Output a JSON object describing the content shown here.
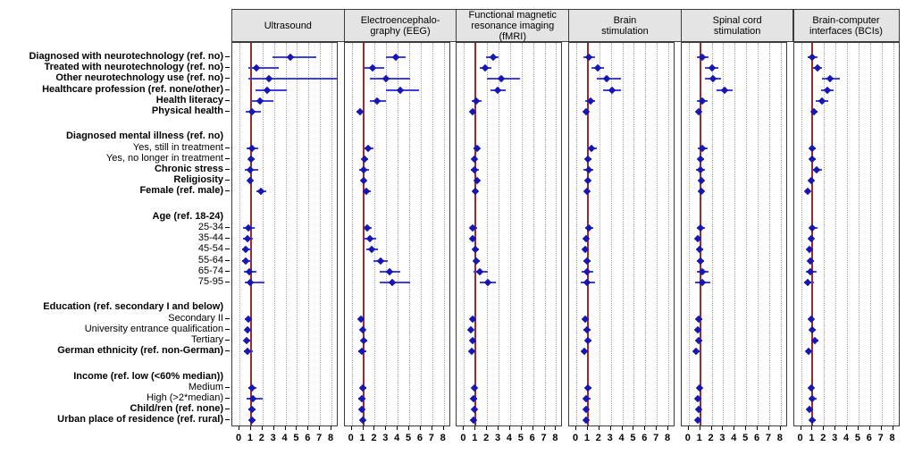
{
  "chart_data": {
    "type": "scatter",
    "subtype": "forest-plot-odds-ratios",
    "x_ticks": [
      "0",
      "1",
      "2",
      "3",
      "4",
      "5",
      "6",
      "7",
      "8"
    ],
    "x_range": [
      0,
      8.6
    ],
    "reference_line_x": 1,
    "grid": "dotted-vertical-at-integers",
    "legend_position": "none",
    "rows": [
      {
        "id": "diag_neurotech",
        "label": "Diagnosed with neurotechnology (ref. no)",
        "bold": true,
        "group_header": false,
        "gap_before": false
      },
      {
        "id": "treated_neurotech",
        "label": "Treated with neurotechnology (ref. no)",
        "bold": true,
        "group_header": false,
        "gap_before": false
      },
      {
        "id": "other_neurotech",
        "label": "Other neurotechnology use (ref. no)",
        "bold": true,
        "group_header": false,
        "gap_before": false
      },
      {
        "id": "healthcare",
        "label": "Healthcare profession (ref. none/other)",
        "bold": true,
        "group_header": false,
        "gap_before": false
      },
      {
        "id": "health_literacy",
        "label": "Health literacy",
        "bold": true,
        "group_header": false,
        "gap_before": false
      },
      {
        "id": "physical_health",
        "label": "Physical health",
        "bold": true,
        "group_header": false,
        "gap_before": false
      },
      {
        "id": "mental_illness_hdr",
        "label": "Diagnosed mental illness (ref. no)",
        "bold": true,
        "group_header": true,
        "gap_before": true
      },
      {
        "id": "yes_treatment",
        "label": "Yes, still in treatment",
        "bold": false,
        "group_header": false,
        "gap_before": false
      },
      {
        "id": "yes_no_treatment",
        "label": "Yes, no longer in treatment",
        "bold": false,
        "group_header": false,
        "gap_before": false
      },
      {
        "id": "chronic_stress",
        "label": "Chronic stress",
        "bold": true,
        "group_header": false,
        "gap_before": false
      },
      {
        "id": "religiosity",
        "label": "Religiosity",
        "bold": true,
        "group_header": false,
        "gap_before": false
      },
      {
        "id": "female",
        "label": "Female (ref. male)",
        "bold": true,
        "group_header": false,
        "gap_before": false
      },
      {
        "id": "age_hdr",
        "label": "Age (ref. 18-24)",
        "bold": true,
        "group_header": true,
        "gap_before": true
      },
      {
        "id": "age_25_34",
        "label": "25-34",
        "bold": false,
        "group_header": false,
        "gap_before": false
      },
      {
        "id": "age_35_44",
        "label": "35-44",
        "bold": false,
        "group_header": false,
        "gap_before": false
      },
      {
        "id": "age_45_54",
        "label": "45-54",
        "bold": false,
        "group_header": false,
        "gap_before": false
      },
      {
        "id": "age_55_64",
        "label": "55-64",
        "bold": false,
        "group_header": false,
        "gap_before": false
      },
      {
        "id": "age_65_74",
        "label": "65-74",
        "bold": false,
        "group_header": false,
        "gap_before": false
      },
      {
        "id": "age_75_95",
        "label": "75-95",
        "bold": false,
        "group_header": false,
        "gap_before": false
      },
      {
        "id": "education_hdr",
        "label": "Education (ref. secondary I and below)",
        "bold": true,
        "group_header": true,
        "gap_before": true
      },
      {
        "id": "secondary2",
        "label": "Secondary II",
        "bold": false,
        "group_header": false,
        "gap_before": false
      },
      {
        "id": "university",
        "label": "University entrance qualification",
        "bold": false,
        "group_header": false,
        "gap_before": false
      },
      {
        "id": "tertiary",
        "label": "Tertiary",
        "bold": false,
        "group_header": false,
        "gap_before": false
      },
      {
        "id": "german",
        "label": "German ethnicity (ref. non-German)",
        "bold": true,
        "group_header": false,
        "gap_before": false
      },
      {
        "id": "income_hdr",
        "label": "Income (ref. low (<60% median))",
        "bold": true,
        "group_header": true,
        "gap_before": true
      },
      {
        "id": "medium",
        "label": "Medium",
        "bold": false,
        "group_header": false,
        "gap_before": false
      },
      {
        "id": "high",
        "label": "High (>2*median)",
        "bold": false,
        "group_header": false,
        "gap_before": false
      },
      {
        "id": "children",
        "label": "Child/ren (ref. none)",
        "bold": true,
        "group_header": false,
        "gap_before": false
      },
      {
        "id": "urban",
        "label": "Urban place of residence (ref. rural)",
        "bold": true,
        "group_header": false,
        "gap_before": false
      }
    ],
    "panels": [
      {
        "title": "Ultrasound",
        "estimates": {
          "diag_neurotech": [
            4.4,
            2.9,
            6.7
          ],
          "treated_neurotech": [
            1.5,
            0.75,
            3.4
          ],
          "other_neurotech": [
            2.6,
            0.8,
            8.6
          ],
          "healthcare": [
            2.4,
            1.4,
            4.1
          ],
          "health_literacy": [
            1.75,
            1.05,
            2.95
          ],
          "physical_health": [
            1.05,
            0.55,
            1.9
          ],
          "yes_treatment": [
            1.1,
            0.65,
            1.6
          ],
          "yes_no_treatment": [
            1.0,
            0.75,
            1.35
          ],
          "chronic_stress": [
            0.9,
            0.45,
            1.6
          ],
          "religiosity": [
            0.9,
            0.7,
            1.15
          ],
          "female": [
            1.9,
            1.5,
            2.3
          ],
          "age_25_34": [
            0.76,
            0.3,
            1.3
          ],
          "age_35_44": [
            0.7,
            0.3,
            1.2
          ],
          "age_45_54": [
            0.55,
            0.25,
            1.0
          ],
          "age_55_64": [
            0.55,
            0.25,
            1.0
          ],
          "age_65_74": [
            0.83,
            0.35,
            1.5
          ],
          "age_75_95": [
            0.95,
            0.45,
            2.15
          ],
          "secondary2": [
            0.75,
            0.5,
            1.1
          ],
          "university": [
            0.7,
            0.45,
            1.05
          ],
          "tertiary": [
            0.62,
            0.4,
            0.95
          ],
          "german": [
            0.73,
            0.4,
            1.2
          ],
          "medium": [
            1.1,
            0.8,
            1.5
          ],
          "high": [
            1.2,
            0.6,
            2.05
          ],
          "children": [
            1.06,
            0.8,
            1.4
          ],
          "urban": [
            1.09,
            0.85,
            1.4
          ]
        }
      },
      {
        "title": "Electroencephalo-\ngraphy (EEG)",
        "estimates": {
          "diag_neurotech": [
            3.85,
            3.0,
            4.65
          ],
          "treated_neurotech": [
            1.8,
            1.1,
            2.8
          ],
          "other_neurotech": [
            2.95,
            1.6,
            5.1
          ],
          "healthcare": [
            4.25,
            3.0,
            5.85
          ],
          "health_literacy": [
            2.2,
            1.6,
            2.95
          ],
          "physical_health": [
            0.76,
            0.45,
            1.1
          ],
          "yes_treatment": [
            1.45,
            1.05,
            1.85
          ],
          "yes_no_treatment": [
            1.1,
            0.9,
            1.4
          ],
          "chronic_stress": [
            1.05,
            0.65,
            1.5
          ],
          "religiosity": [
            1.05,
            0.9,
            1.25
          ],
          "female": [
            1.3,
            0.95,
            1.65
          ],
          "age_25_34": [
            1.35,
            1.0,
            1.7
          ],
          "age_35_44": [
            1.6,
            1.15,
            2.15
          ],
          "age_45_54": [
            1.75,
            1.25,
            2.3
          ],
          "age_55_64": [
            2.5,
            1.85,
            3.15
          ],
          "age_65_74": [
            3.25,
            2.45,
            4.25
          ],
          "age_75_95": [
            3.55,
            2.45,
            5.1
          ],
          "secondary2": [
            0.8,
            0.6,
            1.05
          ],
          "university": [
            0.95,
            0.7,
            1.2
          ],
          "tertiary": [
            1.05,
            0.8,
            1.35
          ],
          "german": [
            0.9,
            0.6,
            1.3
          ],
          "medium": [
            0.95,
            0.75,
            1.25
          ],
          "high": [
            0.85,
            0.6,
            1.2
          ],
          "children": [
            0.85,
            0.65,
            1.05
          ],
          "urban": [
            0.95,
            0.8,
            1.2
          ]
        }
      },
      {
        "title": "Functional magnetic\nresonance imaging\n(fMRI)",
        "estimates": {
          "diag_neurotech": [
            2.5,
            1.95,
            3.0
          ],
          "treated_neurotech": [
            1.85,
            1.35,
            2.4
          ],
          "other_neurotech": [
            3.2,
            2.0,
            4.85
          ],
          "healthcare": [
            2.95,
            2.3,
            3.6
          ],
          "health_literacy": [
            1.05,
            0.65,
            1.5
          ],
          "physical_health": [
            0.76,
            0.55,
            1.0
          ],
          "yes_treatment": [
            1.1,
            0.85,
            1.4
          ],
          "yes_no_treatment": [
            0.9,
            0.7,
            1.15
          ],
          "chronic_stress": [
            0.9,
            0.6,
            1.3
          ],
          "religiosity": [
            1.1,
            0.95,
            1.3
          ],
          "female": [
            1.0,
            0.8,
            1.25
          ],
          "age_25_34": [
            0.78,
            0.55,
            1.1
          ],
          "age_35_44": [
            0.76,
            0.55,
            1.05
          ],
          "age_45_54": [
            1.0,
            0.75,
            1.3
          ],
          "age_55_64": [
            1.07,
            0.8,
            1.4
          ],
          "age_65_74": [
            1.4,
            0.85,
            2.05
          ],
          "age_75_95": [
            2.1,
            1.4,
            2.8
          ],
          "secondary2": [
            0.73,
            0.55,
            1.0
          ],
          "university": [
            0.6,
            0.45,
            0.85
          ],
          "tertiary": [
            0.73,
            0.55,
            1.0
          ],
          "german": [
            0.65,
            0.45,
            0.95
          ],
          "medium": [
            0.9,
            0.7,
            1.15
          ],
          "high": [
            0.82,
            0.6,
            1.1
          ],
          "children": [
            0.9,
            0.7,
            1.1
          ],
          "urban": [
            0.85,
            0.7,
            1.05
          ]
        }
      },
      {
        "title": "Brain\nstimulation",
        "estimates": {
          "diag_neurotech": [
            1.1,
            0.65,
            1.6
          ],
          "treated_neurotech": [
            1.85,
            1.3,
            2.4
          ],
          "other_neurotech": [
            2.6,
            1.8,
            3.9
          ],
          "healthcare": [
            3.1,
            2.35,
            3.85
          ],
          "health_literacy": [
            1.2,
            0.8,
            1.65
          ],
          "physical_health": [
            0.84,
            0.6,
            1.1
          ],
          "yes_treatment": [
            1.3,
            0.9,
            1.75
          ],
          "yes_no_treatment": [
            1.0,
            0.8,
            1.3
          ],
          "chronic_stress": [
            1.1,
            0.65,
            1.5
          ],
          "religiosity": [
            1.0,
            0.85,
            1.2
          ],
          "female": [
            0.94,
            0.75,
            1.15
          ],
          "age_25_34": [
            1.07,
            0.75,
            1.5
          ],
          "age_35_44": [
            0.81,
            0.6,
            1.1
          ],
          "age_45_54": [
            0.76,
            0.55,
            1.05
          ],
          "age_55_64": [
            0.89,
            0.65,
            1.2
          ],
          "age_65_74": [
            0.94,
            0.47,
            1.45
          ],
          "age_75_95": [
            0.94,
            0.35,
            1.6
          ],
          "secondary2": [
            0.76,
            0.55,
            1.0
          ],
          "university": [
            0.89,
            0.65,
            1.2
          ],
          "tertiary": [
            1.0,
            0.75,
            1.35
          ],
          "german": [
            0.68,
            0.45,
            1.0
          ],
          "medium": [
            1.0,
            0.8,
            1.3
          ],
          "high": [
            0.86,
            0.6,
            1.2
          ],
          "children": [
            0.81,
            0.65,
            1.0
          ],
          "urban": [
            0.86,
            0.7,
            1.05
          ]
        }
      },
      {
        "title": "Spinal cord\nstimulation",
        "estimates": {
          "diag_neurotech": [
            1.2,
            0.75,
            1.7
          ],
          "treated_neurotech": [
            2.0,
            1.4,
            2.6
          ],
          "other_neurotech": [
            2.1,
            1.45,
            2.85
          ],
          "healthcare": [
            3.1,
            2.45,
            3.85
          ],
          "health_literacy": [
            1.2,
            0.75,
            1.65
          ],
          "physical_health": [
            0.87,
            0.65,
            1.1
          ],
          "yes_treatment": [
            1.2,
            0.8,
            1.65
          ],
          "yes_no_treatment": [
            1.0,
            0.78,
            1.3
          ],
          "chronic_stress": [
            1.0,
            0.6,
            1.45
          ],
          "religiosity": [
            1.08,
            0.9,
            1.3
          ],
          "female": [
            1.08,
            0.85,
            1.35
          ],
          "age_25_34": [
            1.03,
            0.7,
            1.45
          ],
          "age_35_44": [
            0.81,
            0.6,
            1.1
          ],
          "age_45_54": [
            0.94,
            0.7,
            1.25
          ],
          "age_55_64": [
            1.0,
            0.72,
            1.35
          ],
          "age_65_74": [
            1.2,
            0.7,
            1.75
          ],
          "age_75_95": [
            1.2,
            0.55,
            1.85
          ],
          "secondary2": [
            0.9,
            0.65,
            1.2
          ],
          "university": [
            0.81,
            0.6,
            1.1
          ],
          "tertiary": [
            0.9,
            0.65,
            1.2
          ],
          "german": [
            0.63,
            0.4,
            0.95
          ],
          "medium": [
            0.94,
            0.72,
            1.2
          ],
          "high": [
            0.81,
            0.58,
            1.1
          ],
          "children": [
            0.87,
            0.7,
            1.1
          ],
          "urban": [
            0.81,
            0.66,
            1.0
          ]
        }
      },
      {
        "title": "Brain-computer\ninterfaces (BCIs)",
        "estimates": {
          "diag_neurotech": [
            1.0,
            0.6,
            1.4
          ],
          "treated_neurotech": [
            1.4,
            1.0,
            1.85
          ],
          "other_neurotech": [
            2.5,
            1.8,
            3.4
          ],
          "healthcare": [
            2.3,
            1.75,
            2.85
          ],
          "health_literacy": [
            1.85,
            1.3,
            2.4
          ],
          "physical_health": [
            1.13,
            0.9,
            1.4
          ],
          "yes_treatment": [
            1.0,
            0.78,
            1.3
          ],
          "yes_no_treatment": [
            1.0,
            0.8,
            1.25
          ],
          "chronic_stress": [
            1.35,
            0.9,
            1.85
          ],
          "religiosity": [
            0.9,
            0.75,
            1.05
          ],
          "female": [
            0.6,
            0.45,
            0.82
          ],
          "age_25_34": [
            1.0,
            0.7,
            1.4
          ],
          "age_35_44": [
            0.87,
            0.65,
            1.15
          ],
          "age_45_54": [
            0.76,
            0.55,
            1.0
          ],
          "age_55_64": [
            0.84,
            0.6,
            1.15
          ],
          "age_65_74": [
            0.84,
            0.45,
            1.35
          ],
          "age_75_95": [
            0.6,
            0.3,
            1.1
          ],
          "secondary2": [
            0.87,
            0.65,
            1.15
          ],
          "university": [
            0.95,
            0.7,
            1.25
          ],
          "tertiary": [
            1.2,
            0.9,
            1.55
          ],
          "german": [
            0.69,
            0.45,
            1.0
          ],
          "medium": [
            0.87,
            0.65,
            1.15
          ],
          "high": [
            1.0,
            0.72,
            1.35
          ],
          "children": [
            0.74,
            0.55,
            0.95
          ],
          "urban": [
            1.0,
            0.8,
            1.25
          ]
        }
      }
    ]
  },
  "colors": {
    "marker": "#1616b4",
    "ci_line": "#3d3de0",
    "reference_line": "#9c2a2a",
    "gridline": "#a8a8a8",
    "header_bg": "#e4e4e4",
    "panel_border": "#3c3c3c",
    "text": "#000000"
  }
}
